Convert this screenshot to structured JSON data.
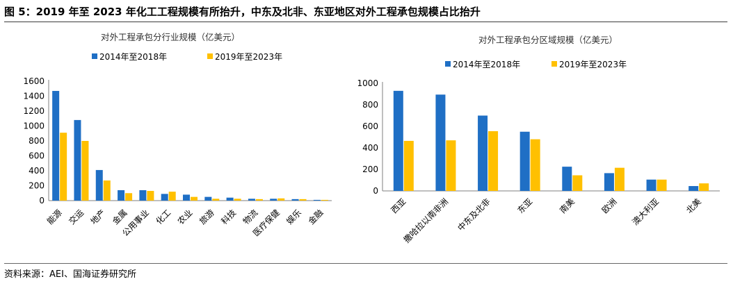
{
  "figure": {
    "title": "图 5：2019 年至 2023 年化工工程规模有所抬升，中东及北非、东亚地区对外工程承包规模占比抬升",
    "source": "资料来源：AEI、国海证券研究所"
  },
  "colors": {
    "series1": "#1f6fc5",
    "series2": "#ffc000"
  },
  "chart_data": [
    {
      "type": "bar",
      "title": "对外工程承包分行业规模（亿美元）",
      "categories": [
        "能源",
        "交运",
        "地产",
        "金属",
        "公用事业",
        "化工",
        "农业",
        "旅游",
        "科技",
        "物流",
        "医疗保健",
        "娱乐",
        "金融"
      ],
      "series": [
        {
          "name": "2014年至2018年",
          "values": [
            1470,
            1080,
            410,
            140,
            140,
            90,
            80,
            50,
            40,
            25,
            25,
            20,
            10
          ]
        },
        {
          "name": "2019年至2023年",
          "values": [
            910,
            800,
            270,
            100,
            130,
            120,
            50,
            25,
            25,
            20,
            30,
            20,
            10
          ]
        }
      ],
      "ylim": [
        0,
        1600
      ],
      "yticks": [
        0,
        200,
        400,
        600,
        800,
        1000,
        1200,
        1400,
        1600
      ],
      "legend": "top-left"
    },
    {
      "type": "bar",
      "title": "对外工程承包分区域规模（亿美元）",
      "categories": [
        "西亚",
        "撒哈拉以南非洲",
        "中东及北非",
        "东亚",
        "南美",
        "欧洲",
        "澳大利亚",
        "北美"
      ],
      "series": [
        {
          "name": "2014年至2018年",
          "values": [
            930,
            895,
            700,
            550,
            225,
            165,
            105,
            45
          ]
        },
        {
          "name": "2019年至2023年",
          "values": [
            465,
            470,
            555,
            480,
            145,
            215,
            105,
            70
          ]
        }
      ],
      "ylim": [
        0,
        1000
      ],
      "yticks": [
        0,
        200,
        400,
        600,
        800,
        1000
      ],
      "legend": "top-left"
    }
  ]
}
